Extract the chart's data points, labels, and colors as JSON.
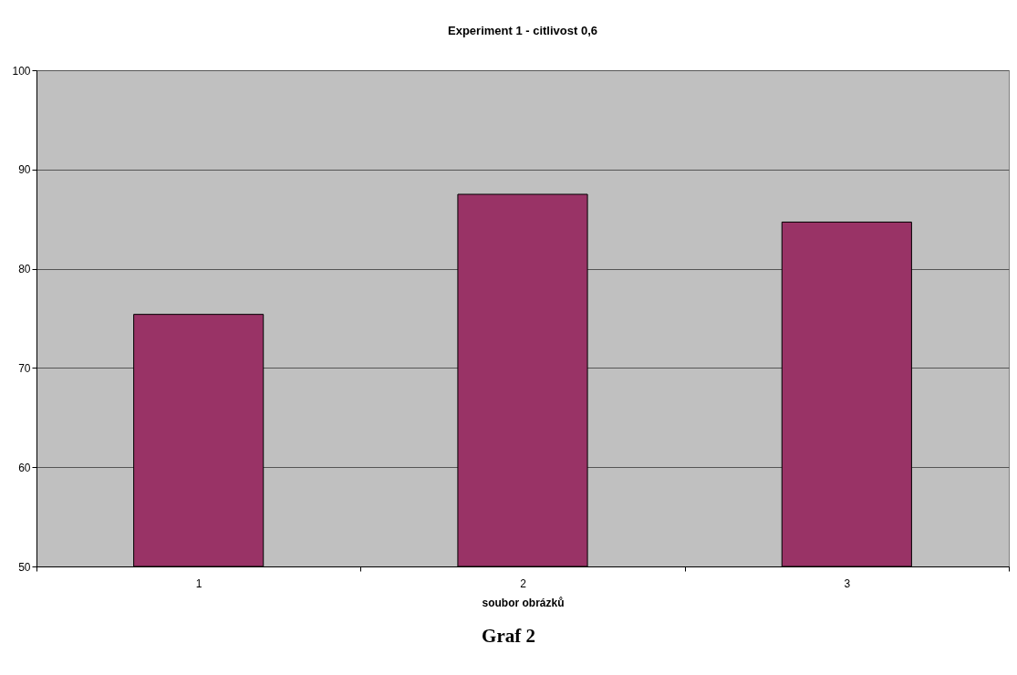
{
  "chart_data": {
    "type": "bar",
    "title": "Experiment 1 - citlivost 0,6",
    "xlabel": "soubor obrázků",
    "categories": [
      "1",
      "2",
      "3"
    ],
    "values": [
      75.4,
      87.5,
      84.7
    ],
    "color": "#993366",
    "ylim": [
      50,
      100
    ],
    "yticks": [
      50,
      60,
      70,
      80,
      90,
      100
    ],
    "grid": "y",
    "annotations": [
      "Graf 2"
    ]
  }
}
